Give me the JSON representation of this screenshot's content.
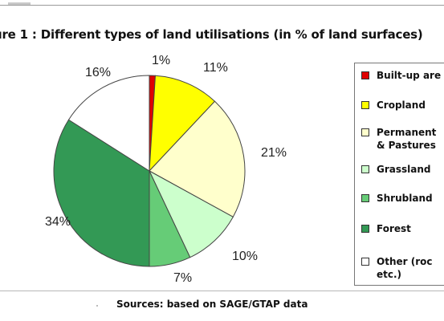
{
  "title": "ure 1 : Different types of land utilisations (in % of land surfaces)",
  "source": "Sources: based on SAGE/GTAP data",
  "chart_data": {
    "type": "pie",
    "title": "ure 1 : Different types of land utilisations (in % of land surfaces)",
    "categories": [
      "Built-up are",
      "Cropland",
      "Permanent\n& Pastures",
      "Grassland",
      "Shrubland",
      "Forest",
      "Other (roc\netc.)"
    ],
    "values": [
      1,
      11,
      21,
      10,
      7,
      34,
      16
    ],
    "labels": [
      "1%",
      "11%",
      "21%",
      "10%",
      "7%",
      "34%",
      "16%"
    ],
    "colors": [
      "#e00000",
      "#ffff00",
      "#ffffcc",
      "#ccffcc",
      "#66cc77",
      "#339955",
      "#ffffff"
    ],
    "legend_position": "right"
  }
}
